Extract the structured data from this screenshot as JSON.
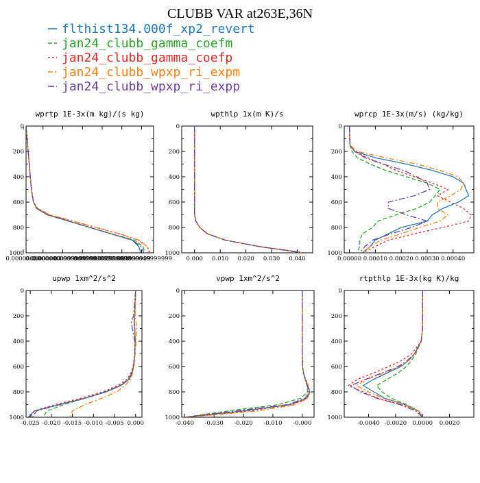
{
  "figure_title": "CLUBB VAR at263E,36N",
  "legend": [
    {
      "label": "flthist134.000f_xp2_revert",
      "color": "#1f77b4",
      "dash": ""
    },
    {
      "label": "jan24_clubb_gamma_coefm",
      "color": "#2ca02c",
      "dash": "6,3"
    },
    {
      "label": "jan24_clubb_gamma_coefp",
      "color": "#d62728",
      "dash": "3,3"
    },
    {
      "label": "jan24_clubb_wpxp_ri_expm",
      "color": "#ff7f0e",
      "dash": "7,3,2,3"
    },
    {
      "label": "jan24_clubb_wpxp_ri_expp",
      "color": "#6a3d9a",
      "dash": "9,3,2,3"
    }
  ],
  "chart_data": [
    {
      "type": "line",
      "title": "wprtp  1E-3x(m kg)/(s kg)",
      "xlim": [
        0,
        0.00012
      ],
      "ylim": [
        1000,
        0
      ],
      "x_ticks": [
        "0.00000000",
        "0.00000000",
        "0.000000099999999",
        "0.00000001999999",
        "0.00000002999999",
        "0.00000003999999",
        "0.000000049999999"
      ],
      "y_ticks": [
        "0",
        "200",
        "400",
        "600",
        "800",
        "1000"
      ],
      "y": [
        0,
        100,
        200,
        300,
        400,
        500,
        600,
        650,
        700,
        750,
        800,
        850,
        900,
        950,
        1000
      ],
      "series": [
        {
          "values": [
            0,
            1e-06,
            2e-06,
            3e-06,
            4e-06,
            5e-06,
            7e-06,
            1e-05,
            2e-05,
            4e-05,
            6e-05,
            8e-05,
            0.0001,
            0.000106,
            0.000108
          ]
        },
        {
          "values": [
            0,
            1e-06,
            2e-06,
            3e-06,
            4e-06,
            5e-06,
            7e-06,
            1e-05,
            2e-05,
            4e-05,
            6e-05,
            8e-05,
            0.000102,
            0.00011,
            0.000112
          ]
        },
        {
          "values": [
            0,
            1e-06,
            2e-06,
            3e-06,
            4e-06,
            5e-06,
            7e-06,
            1.1e-05,
            2.2e-05,
            4.4e-05,
            6.6e-05,
            8.8e-05,
            0.000106,
            0.000114,
            0.000116
          ]
        },
        {
          "values": [
            0,
            1e-06,
            2e-06,
            3e-06,
            4e-06,
            5e-06,
            7e-06,
            1.1e-05,
            2.2e-05,
            4.4e-05,
            6.6e-05,
            8.8e-05,
            0.000106,
            0.000114,
            0.000117
          ]
        },
        {
          "values": [
            0,
            1e-06,
            2e-06,
            3e-06,
            4e-06,
            5e-06,
            7e-06,
            1e-05,
            2e-05,
            4e-05,
            6e-05,
            8e-05,
            0.0001,
            0.000108,
            0.000111
          ]
        }
      ]
    },
    {
      "type": "line",
      "title": "wpthlp  1x(m K)/s",
      "xlim": [
        -0.005,
        0.046
      ],
      "ylim": [
        1000,
        0
      ],
      "x_ticks": [
        "0.000",
        "0.010",
        "0.020",
        "0.030",
        "0.040"
      ],
      "x_tick_values": [
        0,
        0.01,
        0.02,
        0.03,
        0.04
      ],
      "y_ticks": [
        "0",
        "200",
        "400",
        "600",
        "800",
        "1000"
      ],
      "y": [
        0,
        200,
        400,
        600,
        700,
        750,
        800,
        850,
        900,
        950,
        1000
      ],
      "series": [
        {
          "values": [
            0,
            0,
            0,
            0,
            0,
            0.0005,
            0.002,
            0.005,
            0.012,
            0.025,
            0.042
          ]
        },
        {
          "values": [
            0,
            0,
            0,
            0,
            0,
            0.0005,
            0.002,
            0.005,
            0.012,
            0.025,
            0.043
          ]
        },
        {
          "values": [
            0,
            0,
            0,
            0,
            0,
            0.0005,
            0.002,
            0.005,
            0.012,
            0.025,
            0.043
          ]
        },
        {
          "values": [
            0,
            0,
            0,
            0,
            0,
            0.0005,
            0.002,
            0.005,
            0.012,
            0.025,
            0.042
          ]
        },
        {
          "values": [
            0,
            0,
            0,
            0,
            0,
            0.0005,
            0.002,
            0.005,
            0.012,
            0.025,
            0.042
          ]
        }
      ]
    },
    {
      "type": "line",
      "title": "wprcp  1E-3x(m/s) (kg/kg)",
      "xlim": [
        -2e-05,
        0.00048
      ],
      "ylim": [
        1000,
        0
      ],
      "x_ticks": [
        "0.00000",
        "0.00010",
        "0.00020",
        "0.00030",
        "0.00040"
      ],
      "x_tick_values": [
        0,
        0.0001,
        0.0002,
        0.0003,
        0.0004
      ],
      "y_ticks": [
        "0",
        "200",
        "400",
        "600",
        "800",
        "1000"
      ],
      "y": [
        0,
        150,
        200,
        250,
        300,
        350,
        400,
        450,
        500,
        550,
        600,
        650,
        700,
        750,
        800,
        850,
        900,
        950,
        1000
      ],
      "series": [
        {
          "values": [
            0,
            2e-06,
            2e-05,
            0.0001,
            0.00022,
            0.00032,
            0.0004,
            0.00044,
            0.00045,
            0.00046,
            0.00042,
            0.00036,
            0.00032,
            0.0003,
            0.0002,
            0.00015,
            0.0001,
            8e-05,
            5e-05
          ]
        },
        {
          "values": [
            0,
            2e-06,
            1e-05,
            3e-05,
            8e-05,
            0.00014,
            0.00022,
            0.0003,
            0.00035,
            0.00033,
            0.00031,
            0.00026,
            0.00018,
            0.00011,
            9e-05,
            5e-05,
            4e-05,
            4e-05,
            3e-05
          ]
        },
        {
          "values": [
            0,
            2e-06,
            2e-05,
            7e-05,
            0.00013,
            0.00018,
            0.00025,
            0.00032,
            0.00038,
            0.00034,
            0.00039,
            0.00044,
            0.00047,
            0.00046,
            0.00036,
            0.00025,
            0.00015,
            0.0001,
            5e-05
          ]
        },
        {
          "values": [
            0,
            2e-06,
            3e-05,
            0.00014,
            0.00026,
            0.00035,
            0.00042,
            0.00044,
            0.00043,
            0.00039,
            0.00034,
            0.00034,
            0.00038,
            0.00035,
            0.00027,
            0.0002,
            0.00012,
            8e-05,
            5e-05
          ]
        },
        {
          "values": [
            0,
            2e-06,
            2e-05,
            6e-05,
            0.00013,
            0.00021,
            0.00026,
            0.0003,
            0.00031,
            0.00025,
            0.00015,
            0.00015,
            0.00022,
            0.0003,
            0.00024,
            0.00016,
            9e-05,
            6e-05,
            4e-05
          ]
        }
      ]
    },
    {
      "type": "line",
      "title": "upwp  1xm^2/s^2",
      "xlim": [
        -0.026,
        0.0015
      ],
      "ylim": [
        1000,
        0
      ],
      "x_ticks": [
        "-0.025",
        "-0.020",
        "-0.015",
        "-0.010",
        "-0.005",
        "0.000"
      ],
      "x_tick_values": [
        -0.025,
        -0.02,
        -0.015,
        -0.01,
        -0.005,
        0
      ],
      "y_ticks": [
        "0",
        "200",
        "400",
        "600",
        "800",
        "1000"
      ],
      "y": [
        0,
        200,
        250,
        300,
        400,
        500,
        600,
        650,
        700,
        750,
        800,
        850,
        900,
        950,
        1000
      ],
      "series": [
        {
          "values": [
            0,
            -0.0002,
            -0.0003,
            -0.0002,
            -0.0001,
            -0.0002,
            -0.0005,
            -0.0008,
            -0.0015,
            -0.0035,
            -0.007,
            -0.012,
            -0.018,
            -0.024,
            -0.0255
          ]
        },
        {
          "values": [
            0,
            -0.0002,
            -0.0003,
            -0.0002,
            -0.0001,
            -0.0002,
            -0.0005,
            -0.0009,
            -0.0017,
            -0.0037,
            -0.0072,
            -0.012,
            -0.017,
            -0.021,
            -0.022
          ]
        },
        {
          "values": [
            0,
            -0.0002,
            -0.0004,
            -0.0002,
            -0.0001,
            -0.0002,
            -0.0006,
            -0.0011,
            -0.002,
            -0.0042,
            -0.0078,
            -0.013,
            -0.019,
            -0.024,
            -0.025
          ]
        },
        {
          "values": [
            0,
            -0.0001,
            0.0001,
            0.0002,
            0.0001,
            -0.0001,
            -0.0004,
            -0.0007,
            -0.0012,
            -0.0025,
            -0.0045,
            -0.008,
            -0.012,
            -0.015,
            -0.0155
          ]
        },
        {
          "values": [
            0,
            -0.0005,
            -0.001,
            -0.0008,
            -0.0002,
            -0.0002,
            -0.0005,
            -0.0009,
            -0.0016,
            -0.0036,
            -0.0072,
            -0.012,
            -0.018,
            -0.0235,
            -0.0245
          ]
        }
      ]
    },
    {
      "type": "line",
      "title": "vpwp  1xm^2/s^2",
      "xlim": [
        -0.041,
        0.004
      ],
      "ylim": [
        1000,
        0
      ],
      "x_ticks": [
        "-0.040",
        "-0.030",
        "-0.020",
        "-0.010",
        "-0.000"
      ],
      "x_tick_values": [
        -0.04,
        -0.03,
        -0.02,
        -0.01,
        0
      ],
      "y_ticks": [
        "0",
        "200",
        "400",
        "600",
        "800",
        "1000"
      ],
      "y": [
        0,
        200,
        400,
        500,
        600,
        650,
        700,
        750,
        800,
        850,
        900,
        950,
        1000
      ],
      "series": [
        {
          "values": [
            0,
            0,
            0,
            0,
            0.0001,
            0.0004,
            0.001,
            0.0018,
            0.0025,
            0.0015,
            -0.004,
            -0.02,
            -0.04
          ]
        },
        {
          "values": [
            0,
            0,
            0,
            0,
            0.0001,
            0.0004,
            0.001,
            0.0016,
            0.0018,
            -0.0005,
            -0.008,
            -0.025,
            -0.04
          ]
        },
        {
          "values": [
            0,
            0,
            0,
            0,
            0.0001,
            0.0004,
            0.0011,
            0.002,
            0.0027,
            0.0017,
            -0.0035,
            -0.018,
            -0.039
          ]
        },
        {
          "values": [
            0,
            0,
            0,
            0,
            0.0001,
            0.0004,
            0.0011,
            0.002,
            0.0027,
            0.0018,
            -0.002,
            -0.015,
            -0.039
          ]
        },
        {
          "values": [
            0,
            0,
            0,
            0,
            0.0001,
            0.0004,
            0.001,
            0.0017,
            0.0022,
            0.001,
            -0.005,
            -0.022,
            -0.04
          ]
        }
      ]
    },
    {
      "type": "line",
      "title": "rtpthlp  1E-3x(kg K)/kg",
      "xlim": [
        -0.0058,
        0.0038
      ],
      "ylim": [
        1000,
        0
      ],
      "x_ticks": [
        "-0.0040",
        "-0.0020",
        "0.0000",
        "0.0020"
      ],
      "x_tick_values": [
        -0.004,
        -0.002,
        0,
        0.002
      ],
      "y_ticks": [
        "0",
        "200",
        "400",
        "600",
        "800",
        "1000"
      ],
      "y": [
        0,
        200,
        300,
        400,
        500,
        550,
        600,
        650,
        700,
        750,
        800,
        850,
        900,
        950,
        1000
      ],
      "series": [
        {
          "values": [
            0,
            0,
            0,
            -0.0001,
            -0.0006,
            -0.001,
            -0.0016,
            -0.0026,
            -0.0036,
            -0.0044,
            -0.0036,
            -0.0028,
            -0.0013,
            -0.0003,
            0
          ]
        },
        {
          "values": [
            0,
            0,
            0,
            -0.0001,
            -0.0005,
            -0.0008,
            -0.0012,
            -0.0018,
            -0.0026,
            -0.0034,
            -0.003,
            -0.0023,
            -0.0012,
            -0.0003,
            0
          ]
        },
        {
          "values": [
            0,
            0,
            0,
            -0.0001,
            -0.0008,
            -0.0015,
            -0.0025,
            -0.0036,
            -0.0048,
            -0.0055,
            -0.0044,
            -0.0033,
            -0.0016,
            -0.0004,
            0
          ]
        },
        {
          "values": [
            0,
            0,
            0,
            -0.0001,
            -0.0006,
            -0.001,
            -0.0017,
            -0.0028,
            -0.0041,
            -0.0049,
            -0.004,
            -0.0029,
            -0.0014,
            -0.0003,
            0
          ]
        },
        {
          "values": [
            0,
            0,
            0,
            -0.0001,
            -0.0006,
            -0.0011,
            -0.0018,
            -0.003,
            -0.0042,
            -0.0053,
            -0.0046,
            -0.0034,
            -0.0017,
            -0.0005,
            0
          ]
        }
      ]
    }
  ]
}
